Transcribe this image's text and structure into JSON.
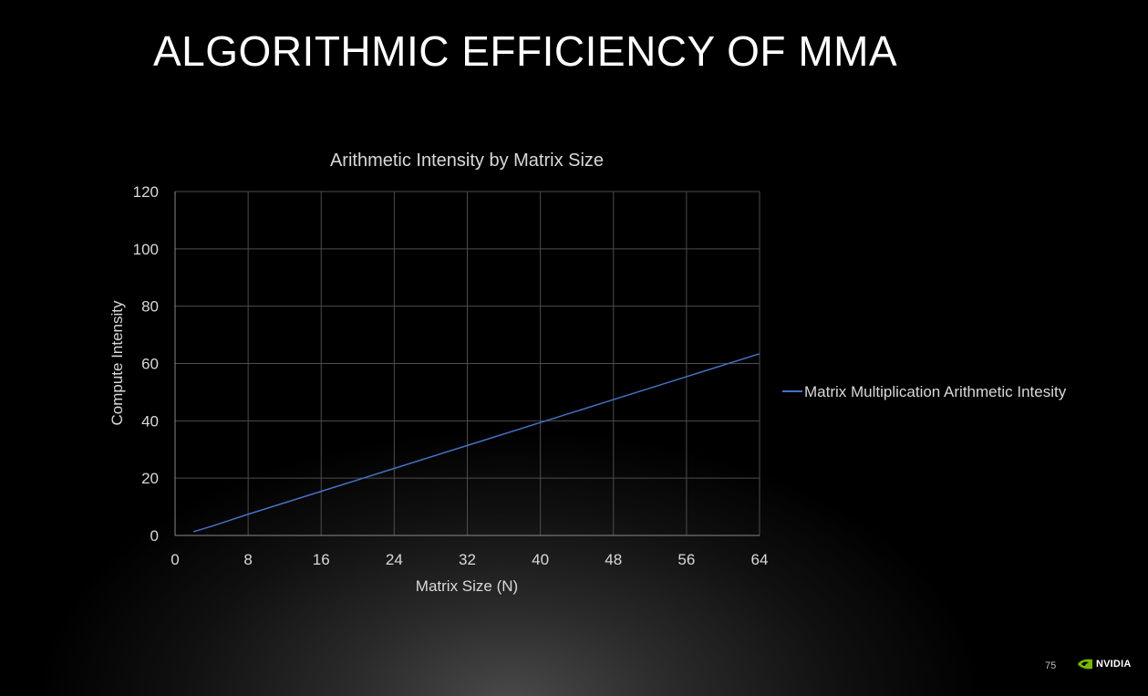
{
  "slide": {
    "title": "ALGORITHMIC EFFICIENCY OF MMA",
    "page_number": "75",
    "logo_text": "NVIDIA"
  },
  "colors": {
    "background": "#000000",
    "series": "#4472c4",
    "nvidia_green": "#76b900"
  },
  "chart_data": {
    "type": "line",
    "title": "Arithmetic Intensity by Matrix Size",
    "xlabel": "Matrix Size (N)",
    "ylabel": "Compute Intensity",
    "xlim": [
      0,
      64
    ],
    "ylim": [
      0,
      120
    ],
    "xticks": [
      0,
      8,
      16,
      24,
      32,
      40,
      48,
      56,
      64
    ],
    "yticks": [
      0,
      20,
      40,
      60,
      80,
      100,
      120
    ],
    "grid": true,
    "legend_position": "right",
    "series": [
      {
        "name": "Matrix Multiplication Arithmetic Intesity",
        "color": "#4472c4",
        "x": [
          2,
          4,
          8,
          16,
          24,
          32,
          40,
          48,
          56,
          64
        ],
        "y": [
          1.3,
          3.2,
          7.4,
          15.4,
          23.4,
          31.4,
          39.4,
          47.4,
          55.4,
          63.4
        ]
      }
    ]
  }
}
